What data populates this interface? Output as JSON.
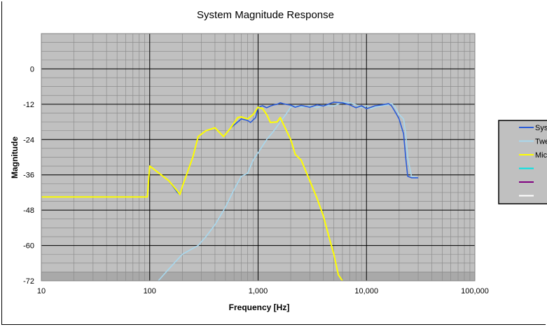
{
  "chart_data": {
    "type": "line",
    "title": "System Magnitude  Response",
    "xlabel": "Frequency [Hz]",
    "ylabel": "Magnitude",
    "xscale": "log",
    "xlim": [
      10,
      100000
    ],
    "ylim": [
      -72,
      12
    ],
    "x_ticks": [
      10,
      100,
      1000,
      10000,
      100000
    ],
    "x_tick_labels": [
      "10",
      "100",
      "1,000",
      "10,000",
      "100,000"
    ],
    "y_ticks": [
      0,
      -12,
      -24,
      -36,
      -48,
      -60,
      -72
    ],
    "y_tick_labels": [
      "0",
      "-12",
      "-24",
      "-36",
      "-48",
      "-60",
      "-72"
    ],
    "grid": true,
    "plot_background": "#c0c0c0",
    "legend_position": "right",
    "series": [
      {
        "name": "Sys",
        "color": "#2a5bd7",
        "x": [
          10,
          95,
          100,
          150,
          180,
          190,
          200,
          250,
          280,
          330,
          400,
          480,
          560,
          650,
          700,
          800,
          850,
          950,
          1000,
          1100,
          1200,
          1300,
          1400,
          1500,
          1600,
          1700,
          1800,
          2000,
          2200,
          2500,
          3000,
          3500,
          4000,
          5000,
          6000,
          7000,
          8000,
          9000,
          10000,
          11000,
          12000,
          14000,
          16000,
          17000,
          18000,
          19000,
          20000,
          22000,
          23000,
          24000,
          26000,
          30000
        ],
        "y": [
          -43.5,
          -43.5,
          -33,
          -38,
          -42,
          -42.7,
          -40,
          -30,
          -23,
          -21,
          -20,
          -23,
          -20,
          -18,
          -17,
          -17.5,
          -18.2,
          -16.5,
          -13,
          -12.5,
          -13.2,
          -12.6,
          -12.2,
          -12,
          -11.5,
          -11.8,
          -12,
          -12.3,
          -13,
          -12.4,
          -13,
          -12.2,
          -12.6,
          -11.3,
          -11.5,
          -12.2,
          -13.2,
          -12.5,
          -13.5,
          -13,
          -12.5,
          -12.2,
          -11.8,
          -12.5,
          -14,
          -15.5,
          -17,
          -22,
          -30,
          -36.5,
          -37,
          -37
        ]
      },
      {
        "name": "Twe",
        "color": "#a8d8ee",
        "x": [
          120,
          150,
          200,
          280,
          330,
          400,
          500,
          600,
          700,
          800,
          900,
          1000,
          1200,
          1400,
          1600,
          1800,
          2000,
          2200,
          2500,
          3000,
          3500,
          4000,
          5000,
          6000,
          7000,
          8000,
          9000,
          10000,
          11000,
          12000,
          14000,
          16000,
          17000,
          18000,
          19000,
          20000,
          22000,
          23000,
          24000,
          26000,
          30000
        ],
        "y": [
          -73,
          -68,
          -63,
          -60,
          -57,
          -53,
          -47,
          -41,
          -36.5,
          -35.5,
          -31,
          -28.5,
          -24,
          -21,
          -18,
          -15.5,
          -13,
          -12.5,
          -13,
          -12.5,
          -13.2,
          -12.4,
          -12.6,
          -11.3,
          -11.5,
          -12.2,
          -13.2,
          -12.5,
          -13.5,
          -13,
          -12.5,
          -12.2,
          -11.8,
          -12.5,
          -14,
          -15.5,
          -17,
          -22,
          -30,
          -36.5,
          -37
        ]
      },
      {
        "name": "Mic",
        "color": "#ffff00",
        "x": [
          10,
          95,
          100,
          150,
          180,
          190,
          200,
          250,
          280,
          330,
          400,
          480,
          560,
          650,
          700,
          800,
          900,
          1000,
          1100,
          1200,
          1300,
          1500,
          1600,
          1800,
          2000,
          2200,
          2500,
          3000,
          3500,
          4000,
          4500,
          5000,
          5500,
          6000
        ],
        "y": [
          -43.5,
          -43.5,
          -33,
          -38,
          -41.5,
          -42.7,
          -40,
          -30,
          -23,
          -21,
          -20,
          -23,
          -20,
          -16.5,
          -16.3,
          -17,
          -15.5,
          -13,
          -13.5,
          -15.5,
          -18.2,
          -18,
          -16.5,
          -20.5,
          -24,
          -29,
          -31,
          -38,
          -44,
          -50,
          -57,
          -63,
          -70,
          -72.5
        ]
      },
      {
        "name": "",
        "color": "#00e5e5",
        "x": [],
        "y": []
      },
      {
        "name": "",
        "color": "#800080",
        "x": [],
        "y": []
      },
      {
        "name": "",
        "color": "#ffffff",
        "x": [],
        "y": []
      }
    ]
  }
}
